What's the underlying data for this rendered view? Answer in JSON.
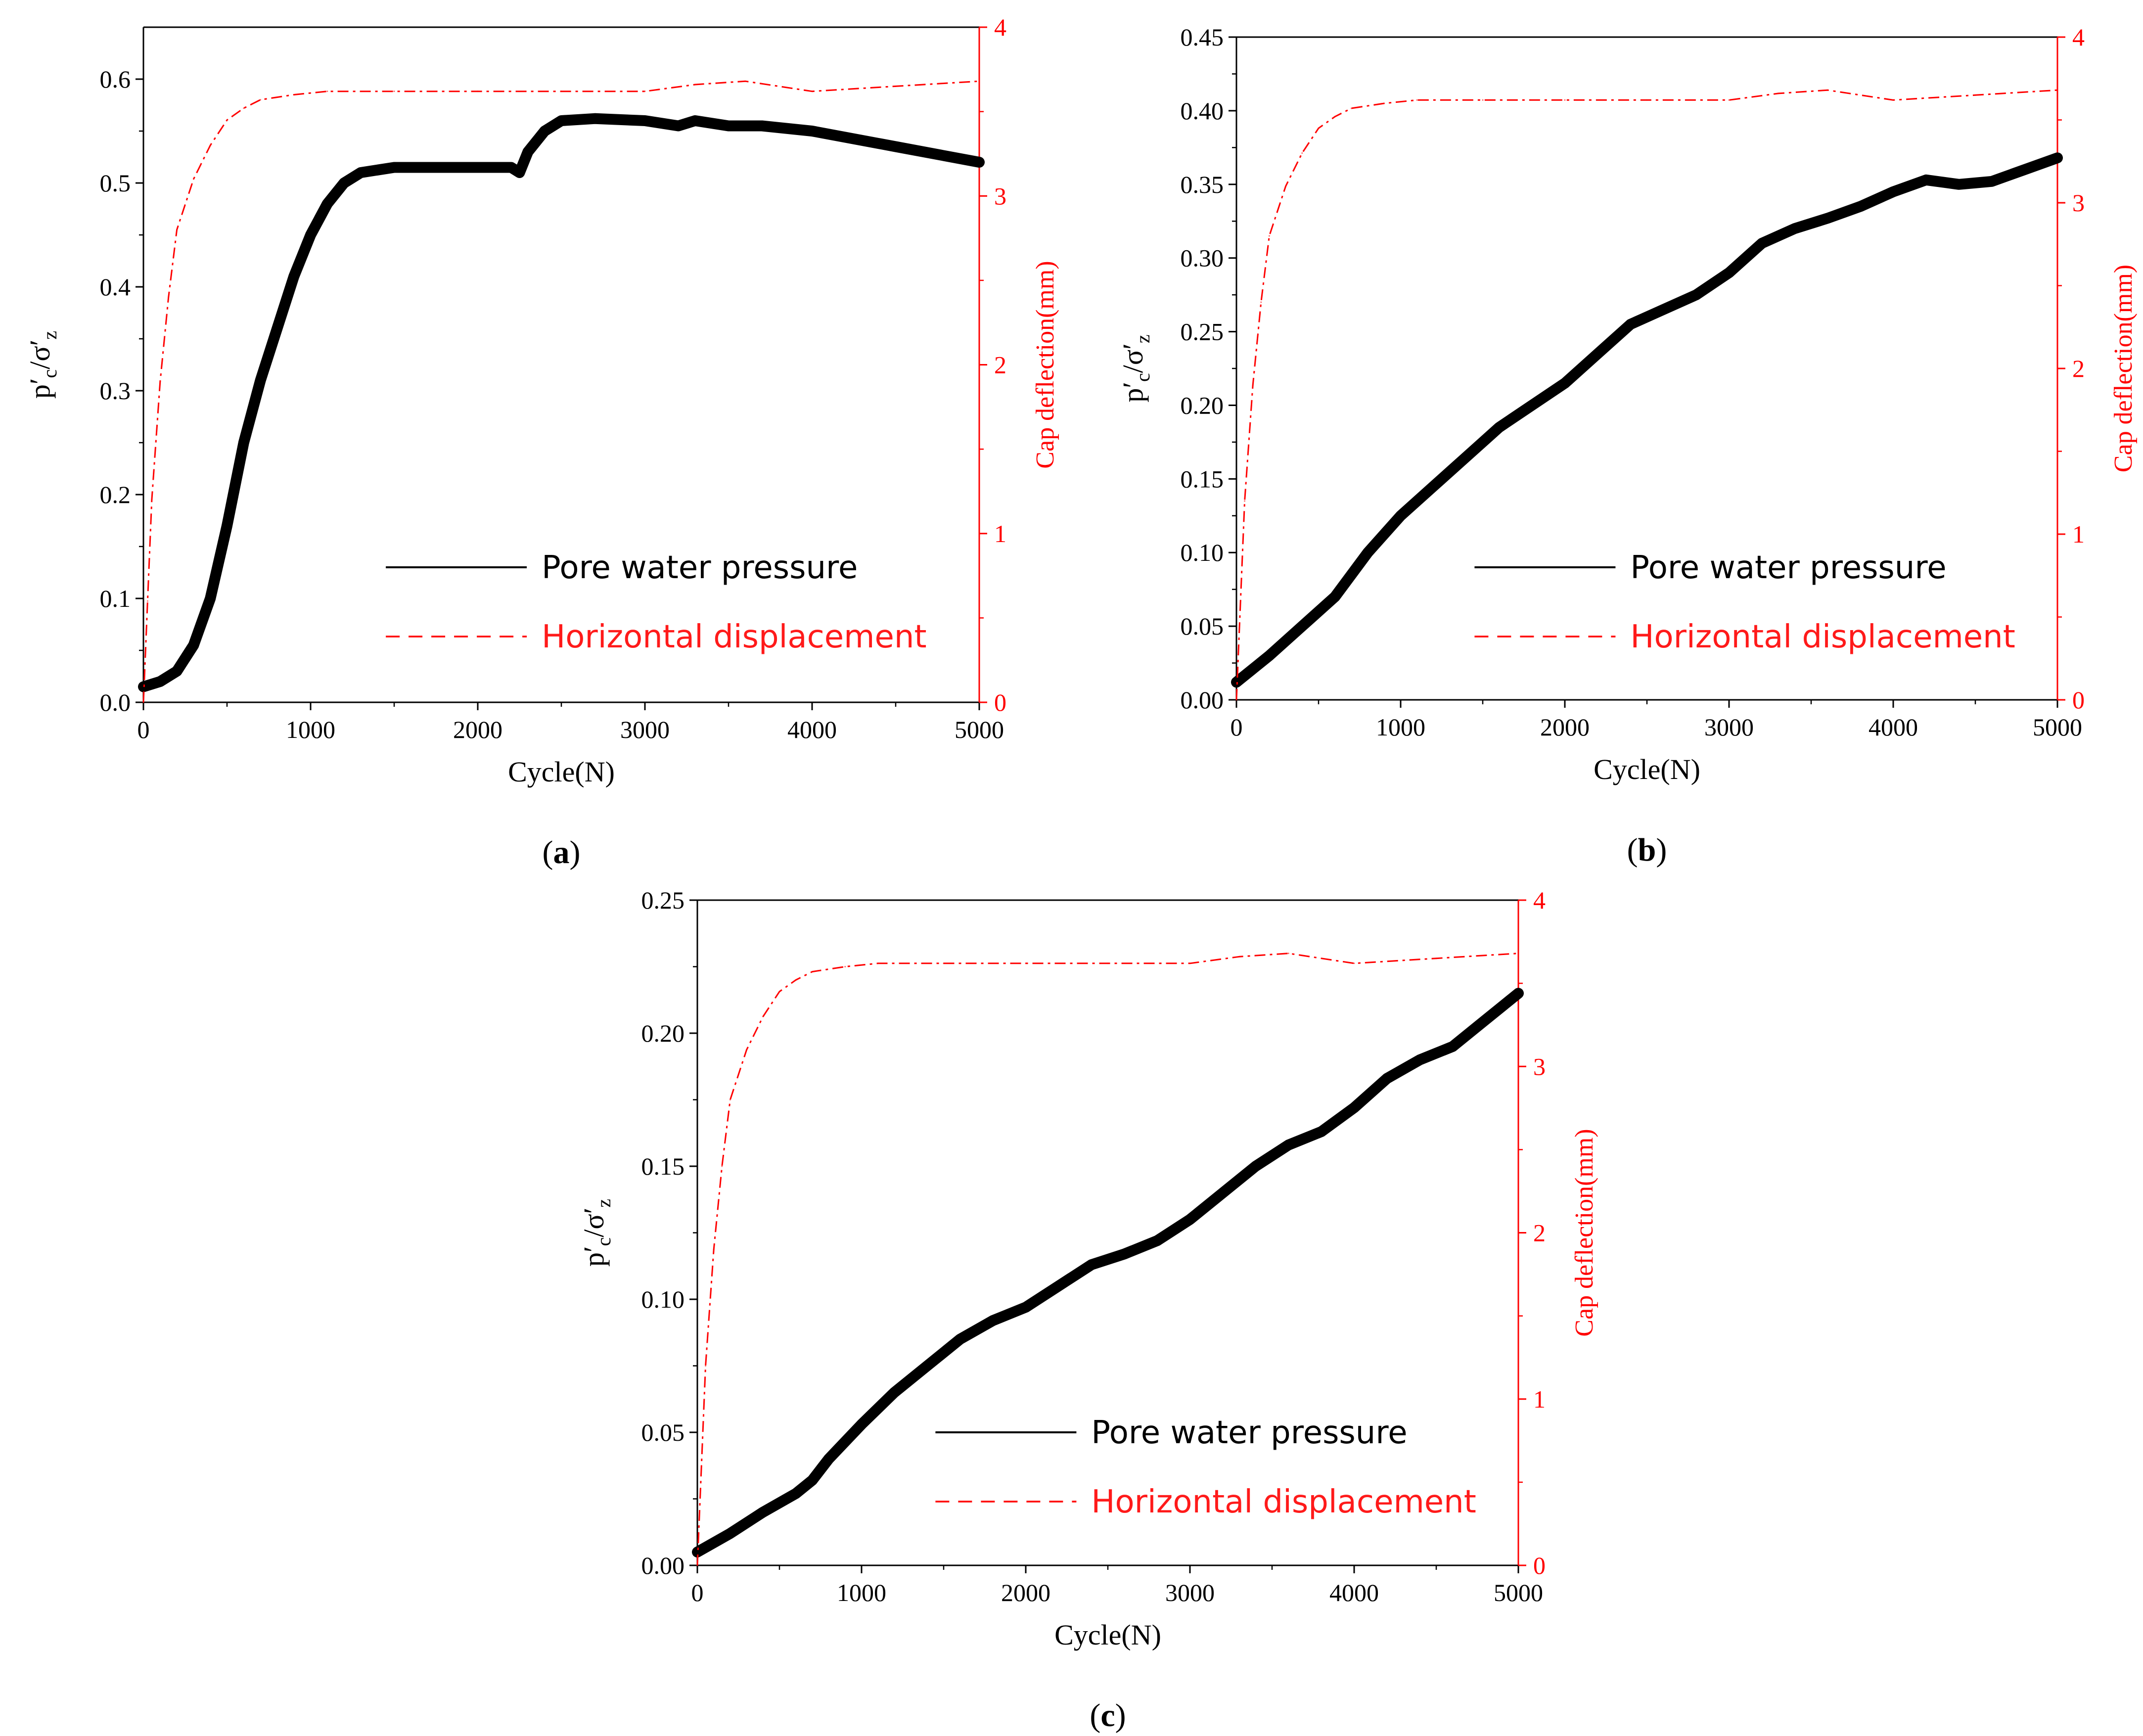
{
  "chart_data": [
    {
      "type": "line",
      "panel_label": "a",
      "xlabel": "Cycle(N)",
      "ylabel_main": "p′",
      "ylabel_sub1": "c",
      "ylabel_mid": "/σ′",
      "ylabel_sub2": "z",
      "y2label": "Cap deflection(mm)",
      "xlim": [
        0,
        5000
      ],
      "ylim": [
        0,
        0.65
      ],
      "y2lim": [
        0,
        4
      ],
      "xticks": [
        0,
        1000,
        2000,
        3000,
        4000,
        5000
      ],
      "xtick_labels": [
        "0",
        "1000",
        "2000",
        "3000",
        "4000",
        "5000"
      ],
      "yticks": [
        0,
        0.1,
        0.2,
        0.3,
        0.4,
        0.5,
        0.6
      ],
      "ytick_labels": [
        "0.0",
        "0.1",
        "0.2",
        "0.3",
        "0.4",
        "0.5",
        "0.6"
      ],
      "y2ticks": [
        0,
        1,
        2,
        3,
        4
      ],
      "y2tick_labels": [
        "0",
        "1",
        "2",
        "3",
        "4"
      ],
      "legend": [
        "Pore water pressure",
        "Horizontal displacement"
      ],
      "legend_position": "bottom-right",
      "series": [
        {
          "name": "Pore water pressure",
          "axis": "left",
          "color": "#000000",
          "x": [
            0,
            100,
            200,
            300,
            400,
            500,
            600,
            700,
            800,
            900,
            1000,
            1100,
            1200,
            1300,
            1500,
            1700,
            2000,
            2200,
            2250,
            2300,
            2400,
            2500,
            2700,
            3000,
            3200,
            3300,
            3500,
            3700,
            4000,
            4500,
            5000
          ],
          "y": [
            0.015,
            0.02,
            0.03,
            0.055,
            0.1,
            0.17,
            0.25,
            0.31,
            0.36,
            0.41,
            0.45,
            0.48,
            0.5,
            0.51,
            0.515,
            0.515,
            0.515,
            0.515,
            0.51,
            0.53,
            0.55,
            0.56,
            0.562,
            0.56,
            0.555,
            0.56,
            0.555,
            0.555,
            0.55,
            0.535,
            0.52
          ]
        },
        {
          "name": "Horizontal displacement",
          "axis": "right",
          "color": "#ff0000",
          "x": [
            0,
            25,
            50,
            100,
            150,
            200,
            300,
            400,
            500,
            600,
            700,
            900,
            1100,
            1500,
            2000,
            2500,
            3000,
            3300,
            3600,
            4000,
            4500,
            5000
          ],
          "y": [
            0,
            0.6,
            1.2,
            1.9,
            2.4,
            2.8,
            3.1,
            3.3,
            3.45,
            3.52,
            3.57,
            3.6,
            3.62,
            3.62,
            3.62,
            3.62,
            3.62,
            3.66,
            3.68,
            3.62,
            3.65,
            3.68
          ]
        }
      ]
    },
    {
      "type": "line",
      "panel_label": "b",
      "xlabel": "Cycle(N)",
      "ylabel_main": "p′",
      "ylabel_sub1": "c",
      "ylabel_mid": "/σ′",
      "ylabel_sub2": "z",
      "y2label": "Cap deflection(mm)",
      "xlim": [
        0,
        5000
      ],
      "ylim": [
        0,
        0.45
      ],
      "y2lim": [
        0,
        4
      ],
      "xticks": [
        0,
        1000,
        2000,
        3000,
        4000,
        5000
      ],
      "xtick_labels": [
        "0",
        "1000",
        "2000",
        "3000",
        "4000",
        "5000"
      ],
      "yticks": [
        0,
        0.05,
        0.1,
        0.15,
        0.2,
        0.25,
        0.3,
        0.35,
        0.4,
        0.45
      ],
      "ytick_labels": [
        "0.00",
        "0.05",
        "0.10",
        "0.15",
        "0.20",
        "0.25",
        "0.30",
        "0.35",
        "0.40",
        "0.45"
      ],
      "y2ticks": [
        0,
        1,
        2,
        3,
        4
      ],
      "y2tick_labels": [
        "0",
        "1",
        "2",
        "3",
        "4"
      ],
      "legend": [
        "Pore water pressure",
        "Horizontal displacement"
      ],
      "legend_position": "bottom-right",
      "series": [
        {
          "name": "Pore water pressure",
          "axis": "left",
          "color": "#000000",
          "x": [
            0,
            200,
            400,
            600,
            800,
            1000,
            1200,
            1400,
            1600,
            1800,
            2000,
            2200,
            2400,
            2600,
            2800,
            3000,
            3200,
            3400,
            3600,
            3800,
            4000,
            4200,
            4400,
            4600,
            4800,
            5000
          ],
          "y": [
            0.012,
            0.03,
            0.05,
            0.07,
            0.1,
            0.125,
            0.145,
            0.165,
            0.185,
            0.2,
            0.215,
            0.235,
            0.255,
            0.265,
            0.275,
            0.29,
            0.31,
            0.32,
            0.327,
            0.335,
            0.345,
            0.353,
            0.35,
            0.352,
            0.36,
            0.368
          ]
        },
        {
          "name": "Horizontal displacement",
          "axis": "right",
          "color": "#ff0000",
          "x": [
            0,
            25,
            50,
            100,
            150,
            200,
            300,
            400,
            500,
            600,
            700,
            900,
            1100,
            1500,
            2000,
            2500,
            3000,
            3300,
            3600,
            4000,
            4500,
            5000
          ],
          "y": [
            0,
            0.6,
            1.2,
            1.9,
            2.4,
            2.8,
            3.1,
            3.3,
            3.45,
            3.52,
            3.57,
            3.6,
            3.62,
            3.62,
            3.62,
            3.62,
            3.62,
            3.66,
            3.68,
            3.62,
            3.65,
            3.68
          ]
        }
      ]
    },
    {
      "type": "line",
      "panel_label": "c",
      "xlabel": "Cycle(N)",
      "ylabel_main": "p′",
      "ylabel_sub1": "c",
      "ylabel_mid": "/σ′",
      "ylabel_sub2": "z",
      "y2label": "Cap deflection(mm)",
      "xlim": [
        0,
        5000
      ],
      "ylim": [
        0,
        0.25
      ],
      "y2lim": [
        0,
        4
      ],
      "xticks": [
        0,
        1000,
        2000,
        3000,
        4000,
        5000
      ],
      "xtick_labels": [
        "0",
        "1000",
        "2000",
        "3000",
        "4000",
        "5000"
      ],
      "yticks": [
        0,
        0.05,
        0.1,
        0.15,
        0.2,
        0.25
      ],
      "ytick_labels": [
        "0.00",
        "0.05",
        "0.10",
        "0.15",
        "0.20",
        "0.25"
      ],
      "y2ticks": [
        0,
        1,
        2,
        3,
        4
      ],
      "y2tick_labels": [
        "0",
        "1",
        "2",
        "3",
        "4"
      ],
      "legend": [
        "Pore water pressure",
        "Horizontal displacement"
      ],
      "legend_position": "bottom-right",
      "series": [
        {
          "name": "Pore water pressure",
          "axis": "left",
          "color": "#000000",
          "x": [
            0,
            200,
            400,
            600,
            700,
            800,
            1000,
            1200,
            1400,
            1600,
            1800,
            2000,
            2200,
            2400,
            2600,
            2800,
            3000,
            3200,
            3400,
            3600,
            3800,
            4000,
            4200,
            4400,
            4600,
            4800,
            5000
          ],
          "y": [
            0.005,
            0.012,
            0.02,
            0.027,
            0.032,
            0.04,
            0.053,
            0.065,
            0.075,
            0.085,
            0.092,
            0.097,
            0.105,
            0.113,
            0.117,
            0.122,
            0.13,
            0.14,
            0.15,
            0.158,
            0.163,
            0.172,
            0.183,
            0.19,
            0.195,
            0.205,
            0.215
          ]
        },
        {
          "name": "Horizontal displacement",
          "axis": "right",
          "color": "#ff0000",
          "x": [
            0,
            25,
            50,
            100,
            150,
            200,
            300,
            400,
            500,
            600,
            700,
            900,
            1100,
            1500,
            2000,
            2500,
            3000,
            3300,
            3600,
            4000,
            4500,
            5000
          ],
          "y": [
            0,
            0.6,
            1.2,
            1.9,
            2.4,
            2.8,
            3.1,
            3.3,
            3.45,
            3.52,
            3.57,
            3.6,
            3.62,
            3.62,
            3.62,
            3.62,
            3.62,
            3.66,
            3.68,
            3.62,
            3.65,
            3.68
          ]
        }
      ]
    }
  ]
}
